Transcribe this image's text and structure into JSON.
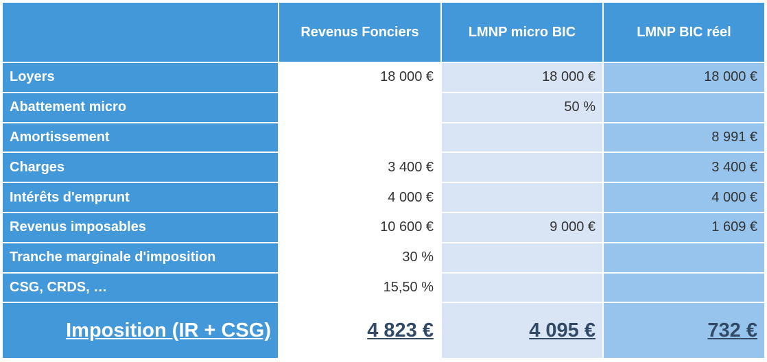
{
  "headers": [
    "",
    "Revenus Fonciers",
    "LMNP micro BIC",
    "LMNP BIC réel"
  ],
  "rows": [
    {
      "label": "Loyers",
      "values": [
        "18 000 €",
        "18 000 €",
        "18 000 €"
      ]
    },
    {
      "label": "Abattement micro",
      "values": [
        "",
        "50 %",
        ""
      ]
    },
    {
      "label": "Amortissement",
      "values": [
        "",
        "",
        "8 991 €"
      ]
    },
    {
      "label": "Charges",
      "values": [
        "3 400 €",
        "",
        "3 400 €"
      ]
    },
    {
      "label": "Intérêts d'emprunt",
      "values": [
        "4 000 €",
        "",
        "4 000 €"
      ]
    },
    {
      "label": "Revenus imposables",
      "values": [
        "10 600 €",
        "9 000 €",
        "1 609 €"
      ]
    },
    {
      "label": "Tranche marginale d'imposition",
      "values": [
        "30 %",
        "",
        ""
      ]
    },
    {
      "label": "CSG, CRDS, …",
      "values": [
        "15,50 %",
        "",
        ""
      ]
    }
  ],
  "total": {
    "label": "Imposition (IR + CSG)",
    "values": [
      "4 823 €",
      "4 095 €",
      "732 €"
    ]
  },
  "colors": {
    "header_blue": "#4298d8",
    "col_micro": "#d9e4f5",
    "col_reel": "#97c4ec",
    "total_text": "#334a66"
  }
}
